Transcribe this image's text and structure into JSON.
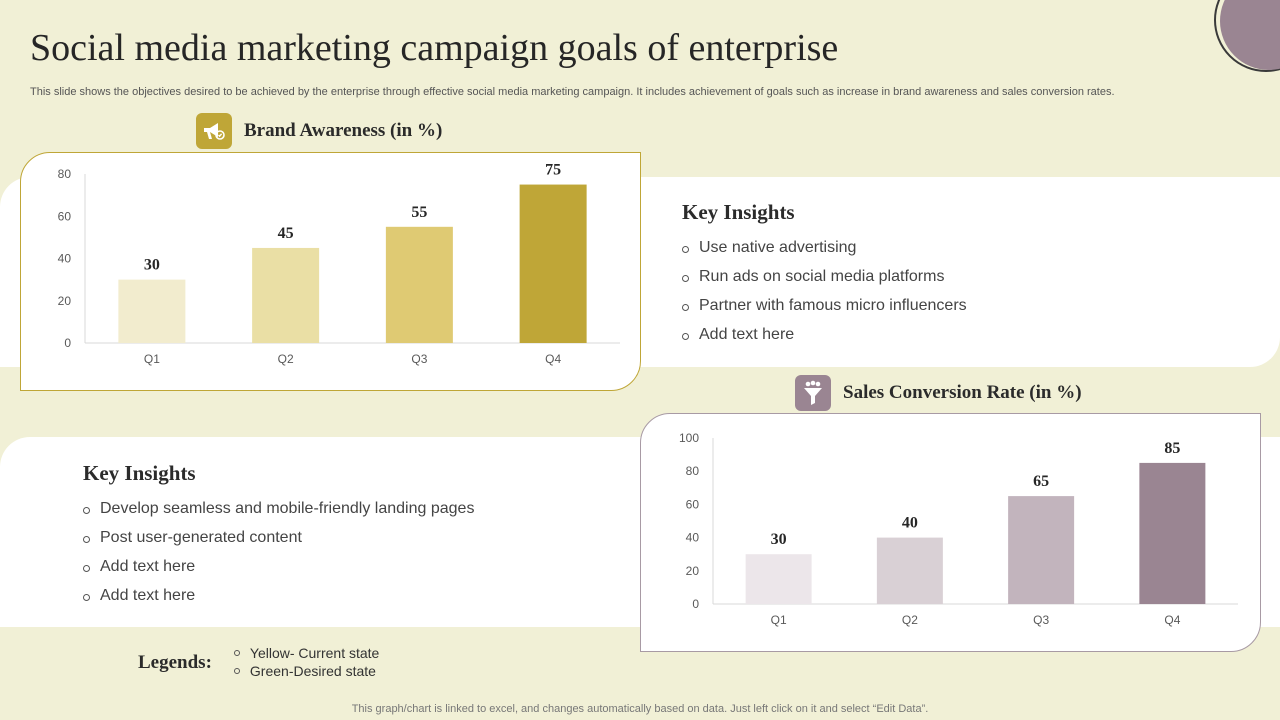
{
  "title": "Social media marketing campaign goals of enterprise",
  "subtitle": "This slide shows the objectives desired to be achieved by the enterprise through effective social media marketing campaign. It includes achievement of goals such as increase in brand awareness and sales conversion rates.",
  "brand_chart": {
    "title": "Brand Awareness (in %)",
    "icon": "megaphone-icon",
    "colors": [
      "#f2ecce",
      "#eadfa5",
      "#dfca73",
      "#bfa637"
    ]
  },
  "sales_chart": {
    "title": "Sales Conversion Rate (in %)",
    "icon": "funnel-icon",
    "colors": [
      "#ece6ea",
      "#d9d0d5",
      "#c2b4bd",
      "#9a8592"
    ]
  },
  "insights_top": {
    "heading": "Key Insights",
    "items": [
      "Use native advertising",
      "Run ads on social media platforms",
      "Partner with famous micro influencers",
      "Add text here"
    ]
  },
  "insights_bottom": {
    "heading": "Key Insights",
    "items": [
      "Develop seamless and mobile-friendly landing pages",
      "Post user-generated content",
      "Add text here",
      "Add text here"
    ]
  },
  "legends": {
    "title": "Legends:",
    "items": [
      "Yellow- Current state",
      "Green-Desired state"
    ]
  },
  "footer": "This graph/chart is linked to excel,  and changes automatically based on data. Just left click on it and select “Edit Data”.",
  "chart_data": [
    {
      "type": "bar",
      "title": "Brand Awareness (in %)",
      "categories": [
        "Q1",
        "Q2",
        "Q3",
        "Q4"
      ],
      "values": [
        30,
        45,
        55,
        75
      ],
      "ylim": [
        0,
        80
      ],
      "yticks": [
        0,
        20,
        40,
        60,
        80
      ],
      "grid": false
    },
    {
      "type": "bar",
      "title": "Sales Conversion Rate (in %)",
      "categories": [
        "Q1",
        "Q2",
        "Q3",
        "Q4"
      ],
      "values": [
        30,
        40,
        65,
        85
      ],
      "ylim": [
        0,
        100
      ],
      "yticks": [
        0,
        20,
        40,
        60,
        80,
        100
      ],
      "grid": false
    }
  ]
}
